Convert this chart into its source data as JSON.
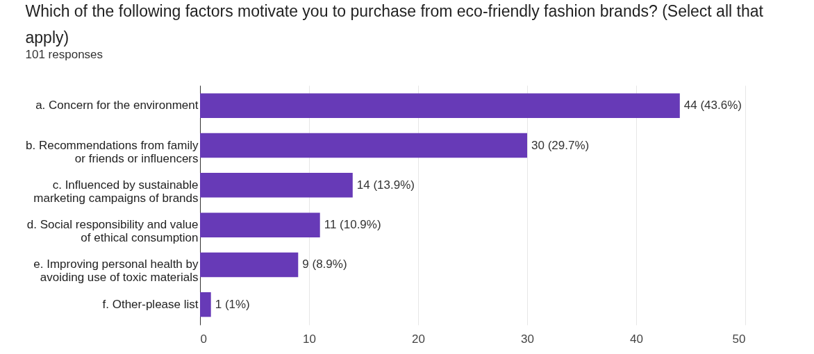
{
  "chart_data": {
    "type": "bar",
    "orientation": "horizontal",
    "title": "Which of the following factors motivate you to purchase from eco-friendly fashion brands? (Select all that apply)",
    "subtitle": "101 responses",
    "categories": [
      "a. Concern for the environment",
      "b. Recommendations from family or friends or influencers",
      "c. Influenced by sustainable marketing campaigns of brands",
      "d. Social responsibility and value of ethical consumption",
      "e. Improving personal health by avoiding use of toxic materials",
      "f. Other-please list"
    ],
    "values": [
      44,
      30,
      14,
      11,
      9,
      1
    ],
    "value_labels": [
      "44 (43.6%)",
      "30 (29.7%)",
      "14 (13.9%)",
      "11 (10.9%)",
      "9 (8.9%)",
      "1 (1%)"
    ],
    "color": "#673ab7",
    "xlim": [
      0,
      50
    ],
    "xticks": [
      0,
      10,
      20,
      30,
      40,
      50
    ],
    "grid": "x"
  }
}
